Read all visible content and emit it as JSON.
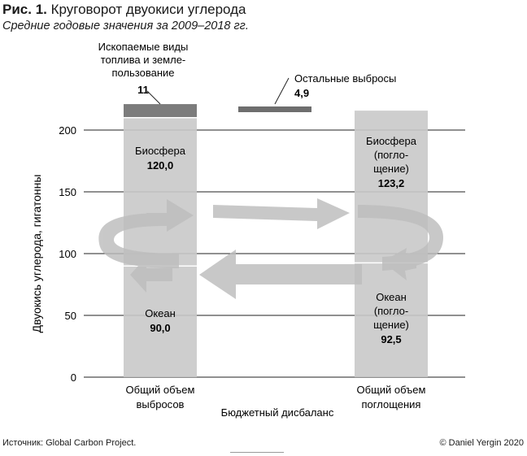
{
  "header": {
    "fig_label": "Рис. 1.",
    "title": "Круговорот двуокиси углерода",
    "subtitle": "Средние годовые значения за 2009–2018 гг."
  },
  "footer": {
    "source": "Источник: Global Carbon Project.",
    "copyright": "© Daniel Yergin 2020"
  },
  "colors": {
    "bar_light": "#c9c9c9",
    "bar_mid": "#b8b8b8",
    "bar_dark": "#6e6e6e",
    "arrow": "#bdbdbd"
  },
  "chart_data": {
    "type": "bar",
    "ylabel": "Двуокись углерода, гигатонны",
    "xlabel": "Бюджетный дисбаланс",
    "ylim": [
      0,
      230
    ],
    "yticks": [
      "0",
      "50",
      "100",
      "150",
      "200"
    ],
    "grid": true,
    "categories": [
      "Общий объем выбросов",
      "Общий объем поглощения"
    ],
    "category_lines": [
      [
        "Общий объем",
        "выбросов"
      ],
      [
        "Общий объем",
        "поглощения"
      ]
    ],
    "segments": [
      {
        "bar": 0,
        "name_lines": [
          "Океан"
        ],
        "value": 90.0,
        "value_label": "90,0",
        "base": 0
      },
      {
        "bar": 0,
        "name_lines": [
          "Биосфера"
        ],
        "value": 120.0,
        "value_label": "120,0",
        "base": 90.0
      },
      {
        "bar": 0,
        "name_lines": [
          "Ископаемые виды",
          "топлива и земле-",
          "пользование"
        ],
        "value": 11,
        "value_label": "11",
        "base": 210.0
      },
      {
        "bar": 1,
        "name_lines": [
          "Океан",
          "(погло-",
          "щение)"
        ],
        "value": 92.5,
        "value_label": "92,5",
        "base": 0
      },
      {
        "bar": 1,
        "name_lines": [
          "Биосфера",
          "(погло-",
          "щение)"
        ],
        "value": 123.2,
        "value_label": "123,2",
        "base": 92.5
      }
    ],
    "imbalance": {
      "name": "Остальные выбросы",
      "value": 4.9,
      "value_label": "4,9",
      "base": 216.3
    }
  }
}
